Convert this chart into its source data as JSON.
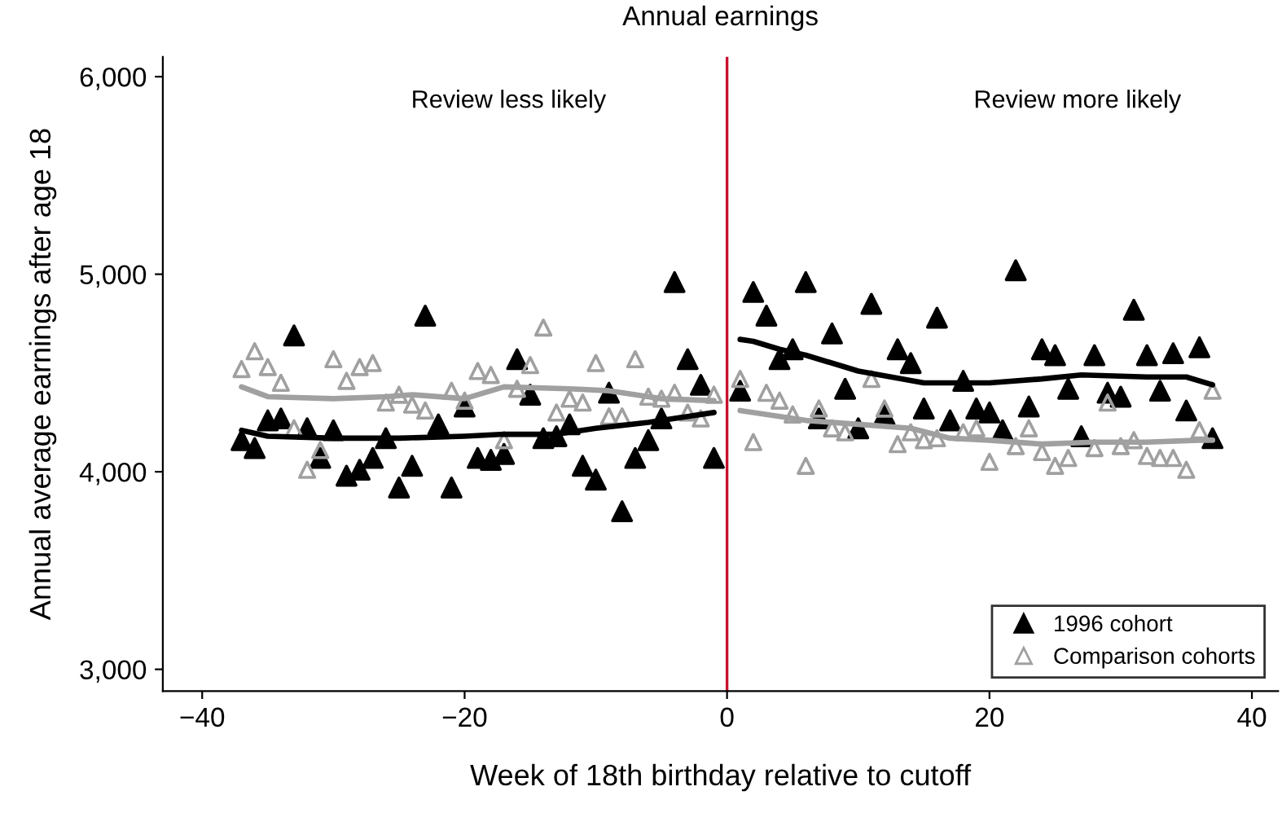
{
  "chart_data": {
    "type": "scatter",
    "title": "Annual earnings",
    "xlabel": "Week of 18th birthday relative to cutoff",
    "ylabel": "Annual average earnings after age 18",
    "x": [
      -37,
      -36,
      -35,
      -34,
      -33,
      -32,
      -31,
      -30,
      -29,
      -28,
      -27,
      -26,
      -25,
      -24,
      -23,
      -22,
      -21,
      -20,
      -19,
      -18,
      -17,
      -16,
      -15,
      -14,
      -13,
      -12,
      -11,
      -10,
      -9,
      -8,
      -7,
      -6,
      -5,
      -4,
      -3,
      -2,
      -1,
      1,
      2,
      3,
      4,
      5,
      6,
      7,
      8,
      9,
      10,
      11,
      12,
      13,
      14,
      15,
      16,
      17,
      18,
      19,
      20,
      21,
      22,
      23,
      24,
      25,
      26,
      27,
      28,
      29,
      30,
      31,
      32,
      33,
      34,
      35,
      36,
      37
    ],
    "series": [
      {
        "name": "1996 cohort",
        "color": "#000000",
        "marker": "triangle",
        "values": [
          4160,
          4120,
          4260,
          4270,
          4690,
          4220,
          4070,
          4210,
          3980,
          4010,
          4070,
          4170,
          3920,
          4030,
          4790,
          4240,
          3920,
          4330,
          4070,
          4060,
          4090,
          4570,
          4390,
          4170,
          4180,
          4240,
          4030,
          3960,
          4400,
          3800,
          4070,
          4160,
          4270,
          4960,
          4570,
          4440,
          4070,
          4410,
          4910,
          4790,
          4570,
          4620,
          4960,
          4270,
          4700,
          4420,
          4220,
          4850,
          4290,
          4620,
          4550,
          4320,
          4780,
          4260,
          4460,
          4320,
          4300,
          4210,
          5020,
          4330,
          4620,
          4590,
          4420,
          4180,
          4590,
          4400,
          4380,
          4820,
          4590,
          4410,
          4600,
          4310,
          4630,
          4170
        ]
      },
      {
        "name": "Comparison cohorts",
        "color": "#a0a0a0",
        "marker": "triangle",
        "values": [
          4520,
          4610,
          4530,
          4450,
          4220,
          4010,
          4110,
          4570,
          4460,
          4530,
          4550,
          4350,
          4390,
          4340,
          4310,
          null,
          4410,
          4360,
          4510,
          4490,
          4160,
          4420,
          4540,
          4730,
          4300,
          4370,
          4350,
          4550,
          4280,
          4280,
          4570,
          4380,
          4370,
          4400,
          4300,
          4270,
          4390,
          4470,
          4150,
          4400,
          4360,
          4290,
          4030,
          4320,
          4220,
          4200,
          null,
          4470,
          4320,
          4140,
          4200,
          4160,
          4170,
          null,
          4200,
          4220,
          4050,
          null,
          4130,
          4220,
          4100,
          4030,
          4070,
          null,
          4120,
          4350,
          4130,
          4160,
          4080,
          4070,
          4070,
          4010,
          4210,
          4410
        ]
      },
      {
        "type": "line",
        "color": "#000000",
        "x": [
          -37,
          -35,
          -30,
          -25,
          -20,
          -17,
          -13,
          -10,
          -6,
          -3,
          -1
        ],
        "values": [
          4210,
          4180,
          4170,
          4170,
          4180,
          4190,
          4190,
          4220,
          4250,
          4280,
          4300
        ]
      },
      {
        "type": "line",
        "color": "#a0a0a0",
        "x": [
          -37,
          -35,
          -30,
          -26,
          -24,
          -20,
          -17,
          -12,
          -9,
          -7,
          -5,
          -1
        ],
        "values": [
          4430,
          4380,
          4370,
          4380,
          4390,
          4370,
          4430,
          4420,
          4410,
          4390,
          4370,
          4360
        ]
      },
      {
        "type": "line",
        "color": "#000000",
        "x": [
          1,
          2,
          4,
          6,
          10,
          15,
          20,
          24,
          27,
          32,
          35,
          37
        ],
        "values": [
          4670,
          4660,
          4620,
          4590,
          4510,
          4450,
          4450,
          4470,
          4490,
          4480,
          4480,
          4440
        ]
      },
      {
        "type": "line",
        "color": "#a0a0a0",
        "x": [
          1,
          6,
          10,
          14,
          17,
          20,
          24,
          28,
          32,
          36,
          37
        ],
        "values": [
          4310,
          4260,
          4240,
          4220,
          4170,
          4160,
          4140,
          4150,
          4150,
          4160,
          4160
        ]
      }
    ],
    "annotations": [
      "Review less likely",
      "Review more likely"
    ],
    "ref_lines": [
      {
        "axis": "x",
        "value": 0,
        "color": "#c8102e"
      }
    ],
    "xlim": [
      -43,
      42
    ],
    "xticks": [
      {
        "value": -40,
        "label": "−40"
      },
      {
        "value": -20,
        "label": "−20"
      },
      0,
      20,
      40
    ],
    "ylim": [
      2890,
      6100
    ],
    "yticks": [
      {
        "value": 3000,
        "label": "3,000"
      },
      {
        "value": 4000,
        "label": "4,000"
      },
      {
        "value": 5000,
        "label": "5,000"
      },
      {
        "value": 6000,
        "label": "6,000"
      }
    ],
    "grid": false,
    "legend": "bottom right"
  }
}
